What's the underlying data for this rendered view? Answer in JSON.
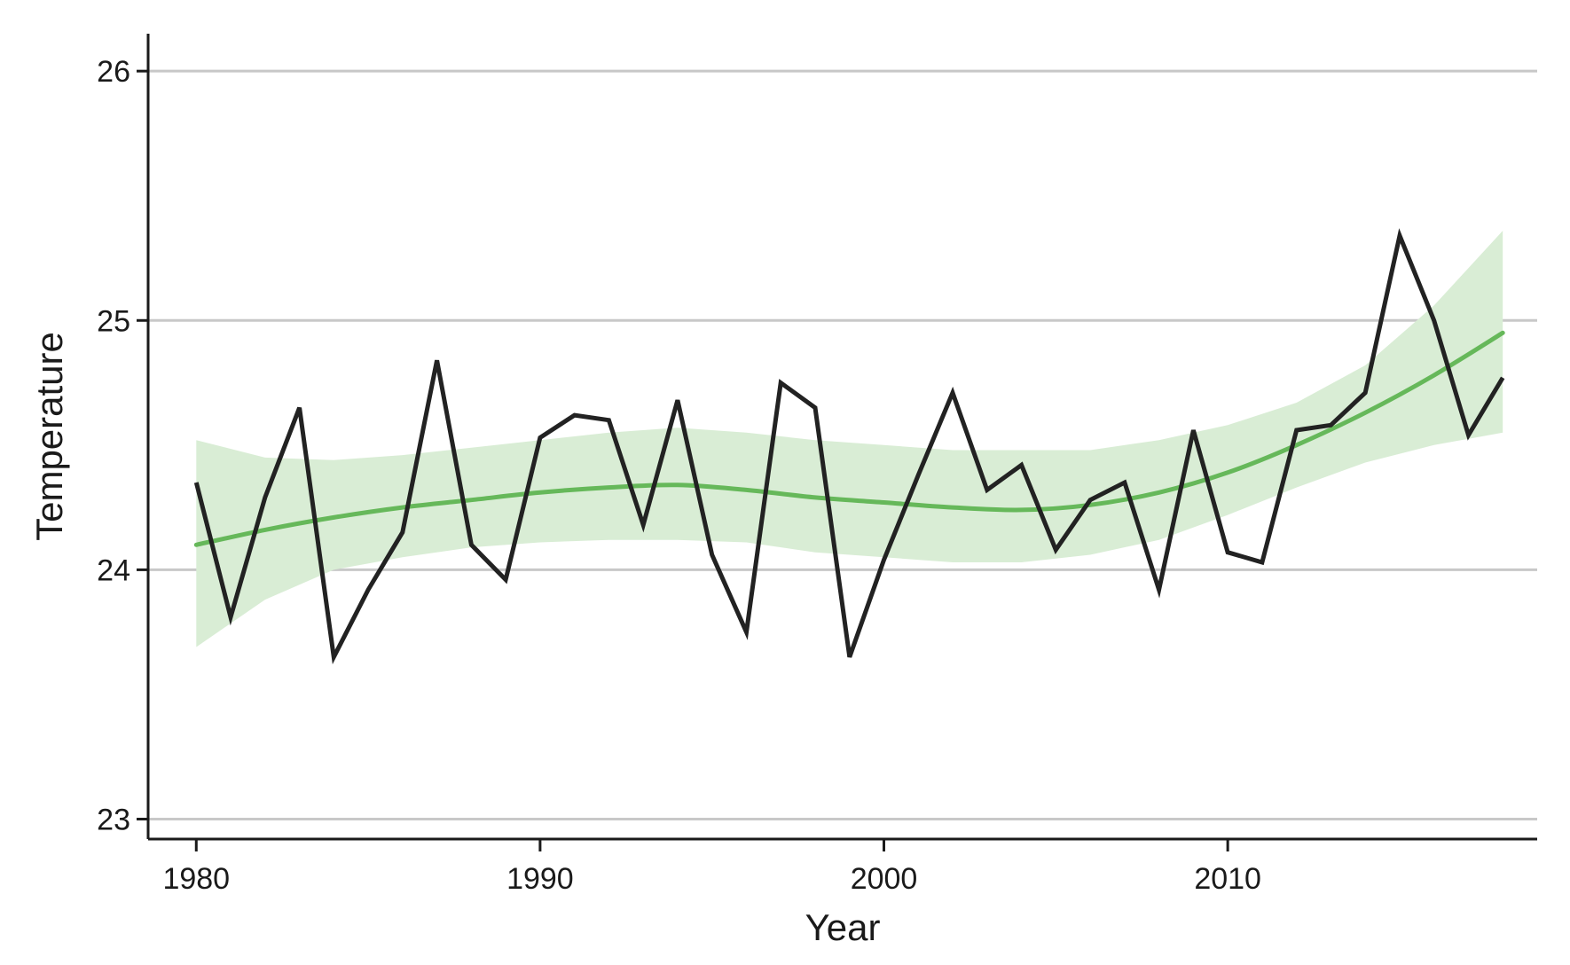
{
  "chart_data": {
    "type": "line",
    "xlabel": "Year",
    "ylabel": "Temperature",
    "xlim": [
      1978.6,
      2019.0
    ],
    "ylim": [
      22.92,
      26.15
    ],
    "x_ticks": [
      1980,
      1990,
      2000,
      2010
    ],
    "y_ticks": [
      23,
      24,
      25,
      26
    ],
    "grid": "horizontal",
    "legend": "none",
    "colors": {
      "observed": "#222222",
      "smooth": "#66b85a",
      "band": "#d9edd5",
      "grid": "#c8c8c8",
      "axis": "#1a1a1a"
    },
    "series": [
      {
        "role": "observed",
        "x": [
          1980,
          1981,
          1982,
          1983,
          1984,
          1985,
          1986,
          1987,
          1988,
          1989,
          1990,
          1991,
          1992,
          1993,
          1994,
          1995,
          1996,
          1997,
          1998,
          1999,
          2000,
          2001,
          2002,
          2003,
          2004,
          2005,
          2006,
          2007,
          2008,
          2009,
          2010,
          2011,
          2012,
          2013,
          2014,
          2015,
          2016,
          2017,
          2018
        ],
        "values": [
          24.35,
          23.81,
          24.29,
          24.65,
          23.65,
          23.92,
          24.15,
          24.84,
          24.1,
          23.96,
          24.53,
          24.62,
          24.6,
          24.18,
          24.68,
          24.06,
          23.75,
          24.75,
          24.65,
          23.65,
          24.04,
          24.38,
          24.71,
          24.32,
          24.42,
          24.08,
          24.28,
          24.35,
          23.92,
          24.56,
          24.07,
          24.03,
          24.56,
          24.58,
          24.71,
          25.34,
          25.0,
          24.54,
          24.77
        ]
      },
      {
        "role": "smooth",
        "x": [
          1980,
          1982,
          1984,
          1986,
          1988,
          1990,
          1992,
          1994,
          1996,
          1998,
          2000,
          2002,
          2004,
          2006,
          2008,
          2010,
          2012,
          2014,
          2016,
          2018
        ],
        "values": [
          24.1,
          24.16,
          24.21,
          24.25,
          24.28,
          24.31,
          24.33,
          24.34,
          24.32,
          24.29,
          24.27,
          24.25,
          24.24,
          24.26,
          24.31,
          24.39,
          24.5,
          24.63,
          24.78,
          24.95
        ],
        "lower": [
          23.69,
          23.88,
          24.0,
          24.05,
          24.09,
          24.11,
          24.12,
          24.12,
          24.11,
          24.07,
          24.05,
          24.03,
          24.03,
          24.06,
          24.12,
          24.22,
          24.33,
          24.43,
          24.5,
          24.55
        ],
        "upper": [
          24.52,
          24.45,
          24.44,
          24.46,
          24.49,
          24.52,
          24.55,
          24.57,
          24.55,
          24.52,
          24.5,
          24.48,
          24.48,
          24.48,
          24.52,
          24.58,
          24.67,
          24.82,
          25.06,
          25.36
        ]
      }
    ]
  }
}
